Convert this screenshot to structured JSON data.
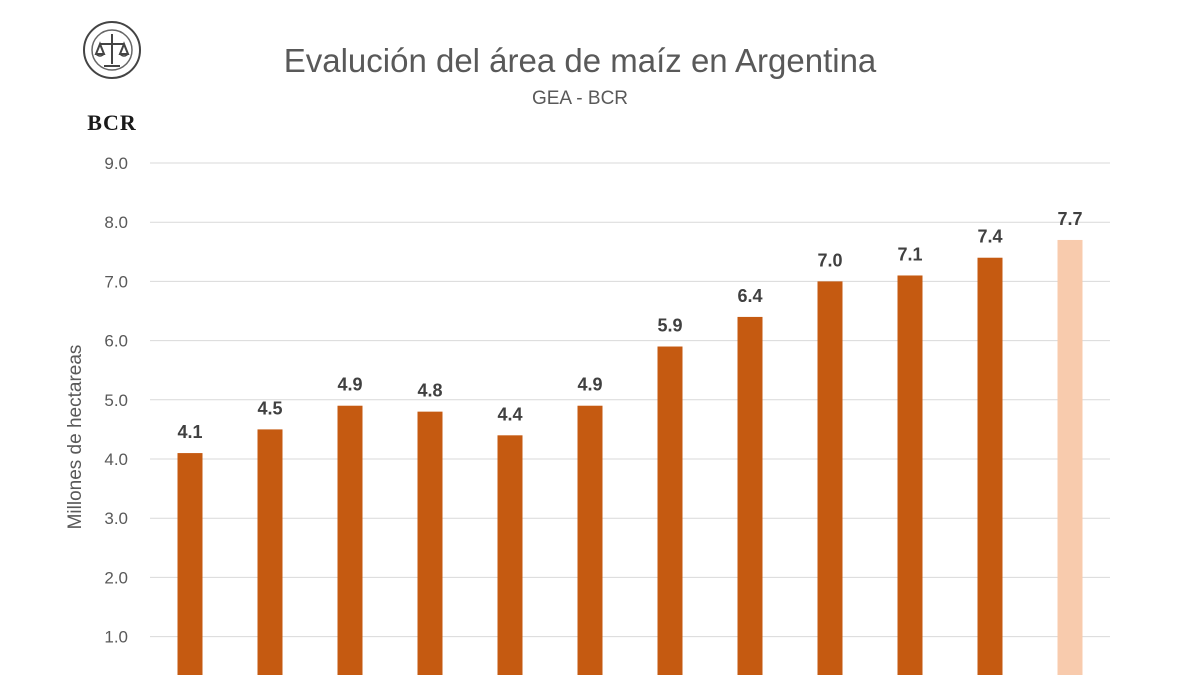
{
  "header": {
    "logo_text": "BCR",
    "title": "Evalución del área de maíz en Argentina",
    "subtitle": "GEA - BCR"
  },
  "colors": {
    "bar": "#c55a11",
    "bar_highlight": "#f8cbad",
    "grid": "#d9d9d9",
    "axis_text": "#595959",
    "data_label": "#404040"
  },
  "chart_data": {
    "type": "bar",
    "title": "Evalución del área de maíz en Argentina",
    "subtitle": "GEA - BCR",
    "ylabel": "Millones de hectareas",
    "xlabel": "",
    "ylim": [
      0,
      9
    ],
    "yticks": [
      1.0,
      2.0,
      3.0,
      4.0,
      5.0,
      6.0,
      7.0,
      8.0,
      9.0
    ],
    "ytick_labels": [
      "1.0",
      "2.0",
      "3.0",
      "4.0",
      "5.0",
      "6.0",
      "7.0",
      "8.0",
      "9.0"
    ],
    "grid": true,
    "values": [
      4.1,
      4.5,
      4.9,
      4.8,
      4.4,
      4.9,
      5.9,
      6.4,
      7.0,
      7.1,
      7.4,
      7.7
    ],
    "data_labels": [
      "4.1",
      "4.5",
      "4.9",
      "4.8",
      "4.4",
      "4.9",
      "5.9",
      "6.4",
      "7.0",
      "7.1",
      "7.4",
      "7.7"
    ],
    "highlighted_last": true
  }
}
